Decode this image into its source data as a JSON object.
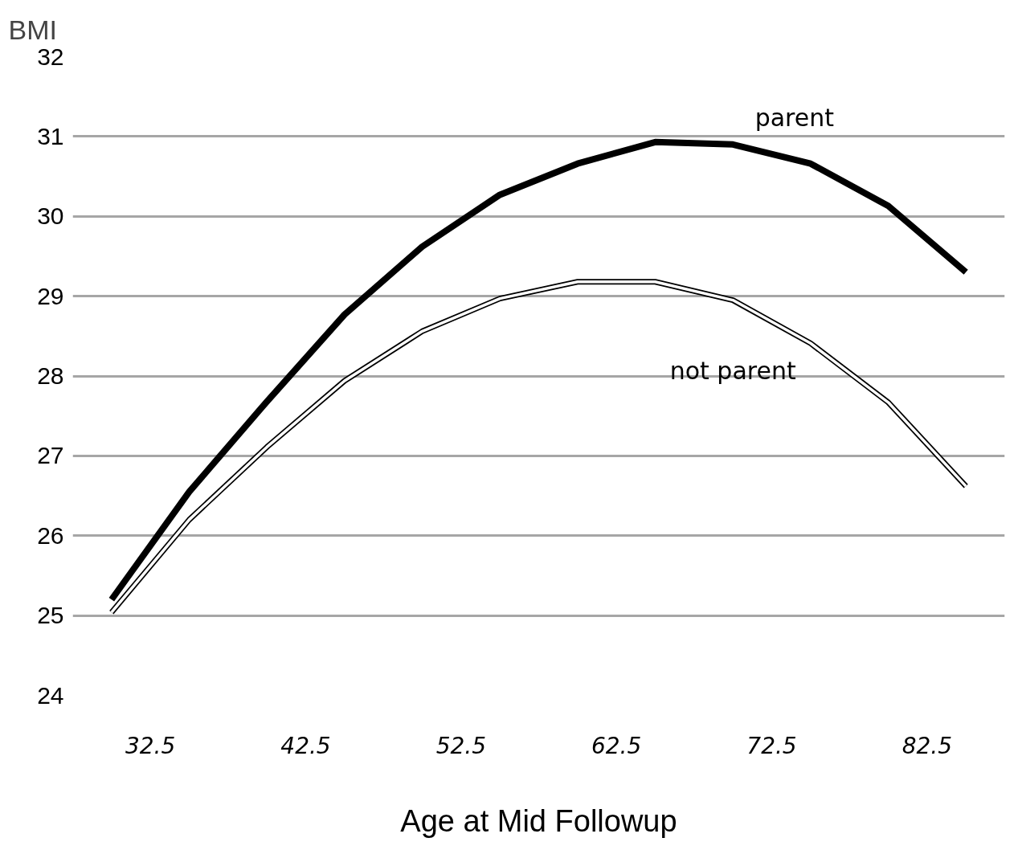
{
  "chart_data": {
    "type": "line",
    "xlabel": "Age at Mid Followup",
    "ylabel": "BMI",
    "x": [
      30,
      35,
      40,
      45,
      50,
      55,
      60,
      65,
      70,
      75,
      80,
      85
    ],
    "series": [
      {
        "name": "parent",
        "color": "#000000",
        "values": [
          25.2,
          26.55,
          27.68,
          28.77,
          29.62,
          30.27,
          30.66,
          30.93,
          30.9,
          30.66,
          30.13,
          29.3
        ]
      },
      {
        "name": "not parent",
        "color": "#000000",
        "values": [
          25.04,
          26.2,
          27.11,
          27.94,
          28.56,
          28.97,
          29.18,
          29.18,
          28.95,
          28.41,
          27.67,
          26.62
        ]
      }
    ],
    "ylim": [
      24,
      32
    ],
    "xlim": [
      27.5,
      87.5
    ],
    "xticks": [
      32.5,
      42.5,
      52.5,
      62.5,
      72.5,
      82.5
    ],
    "yticks": [
      24,
      25,
      26,
      27,
      28,
      29,
      30,
      31,
      32
    ],
    "grid": "y",
    "legend": false,
    "marker": "none",
    "line_style": "solid"
  }
}
